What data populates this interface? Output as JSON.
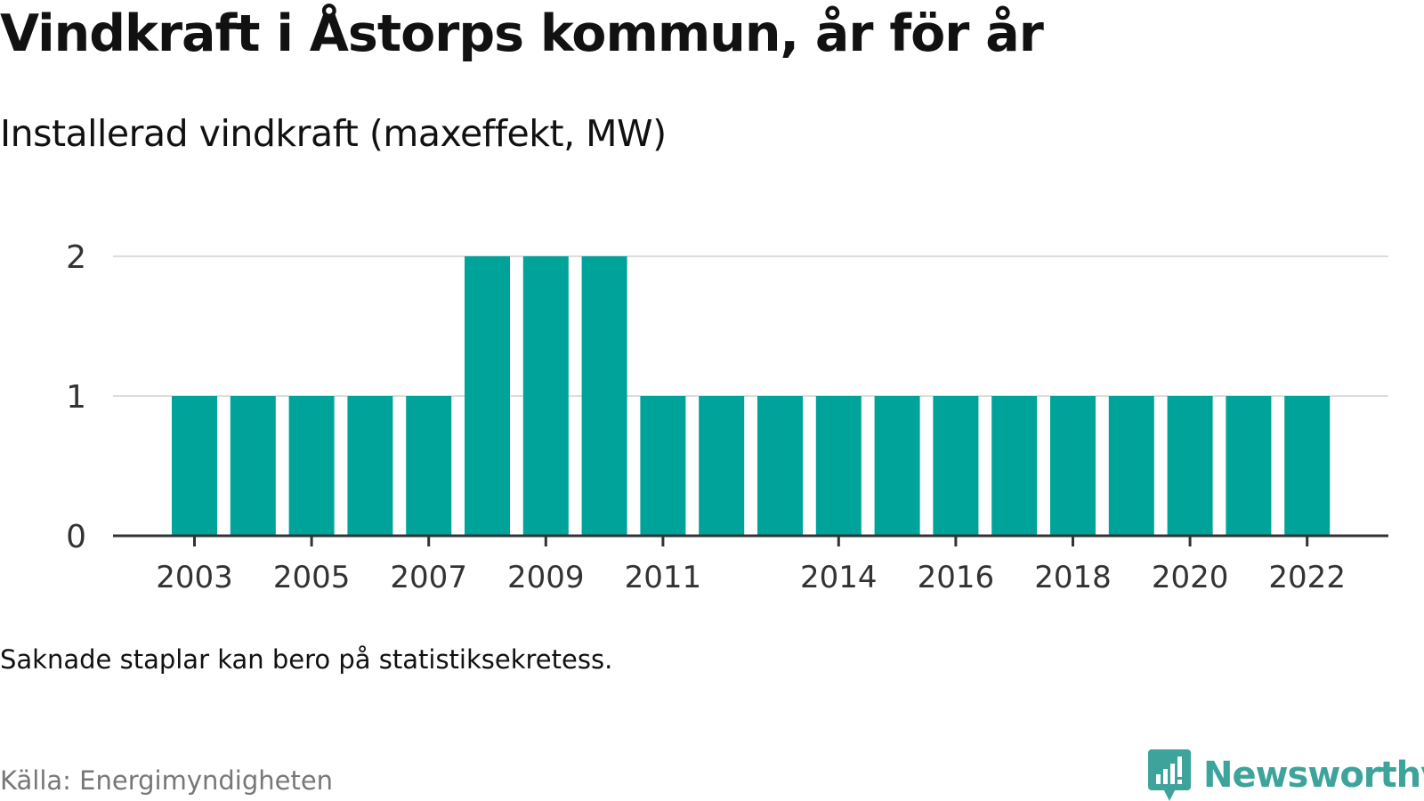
{
  "title": "Vindkraft i Åstorps kommun, år för år",
  "subtitle": "Installerad vindkraft (maxeffekt, MW)",
  "note": "Saknade staplar kan bero på statistiksekretess.",
  "source": "Källa: Energimyndigheten",
  "brand": {
    "name": "Newsworthy",
    "icon": "newsworthy-logo-icon",
    "color": "#3da39b"
  },
  "colors": {
    "bar": "#00a39a",
    "grid": "#dddddd",
    "axis": "#333333"
  },
  "chart_data": {
    "type": "bar",
    "title": "Installerad vindkraft (maxeffekt, MW)",
    "xlabel": "",
    "ylabel": "",
    "grid": true,
    "ylim": [
      0,
      2
    ],
    "y_ticks": [
      0,
      1,
      2
    ],
    "x_tick_labels": [
      "2003",
      "2005",
      "2007",
      "2009",
      "2011",
      "2014",
      "2016",
      "2018",
      "2020",
      "2022"
    ],
    "categories": [
      "2003",
      "2004",
      "2005",
      "2006",
      "2007",
      "2008",
      "2009",
      "2010",
      "2011",
      "2012",
      "2013",
      "2014",
      "2015",
      "2016",
      "2017",
      "2018",
      "2019",
      "2020",
      "2021",
      "2022"
    ],
    "values": [
      1,
      1,
      1,
      1,
      1,
      2,
      2,
      2,
      1,
      1,
      1,
      1,
      1,
      1,
      1,
      1,
      1,
      1,
      1,
      1
    ]
  }
}
